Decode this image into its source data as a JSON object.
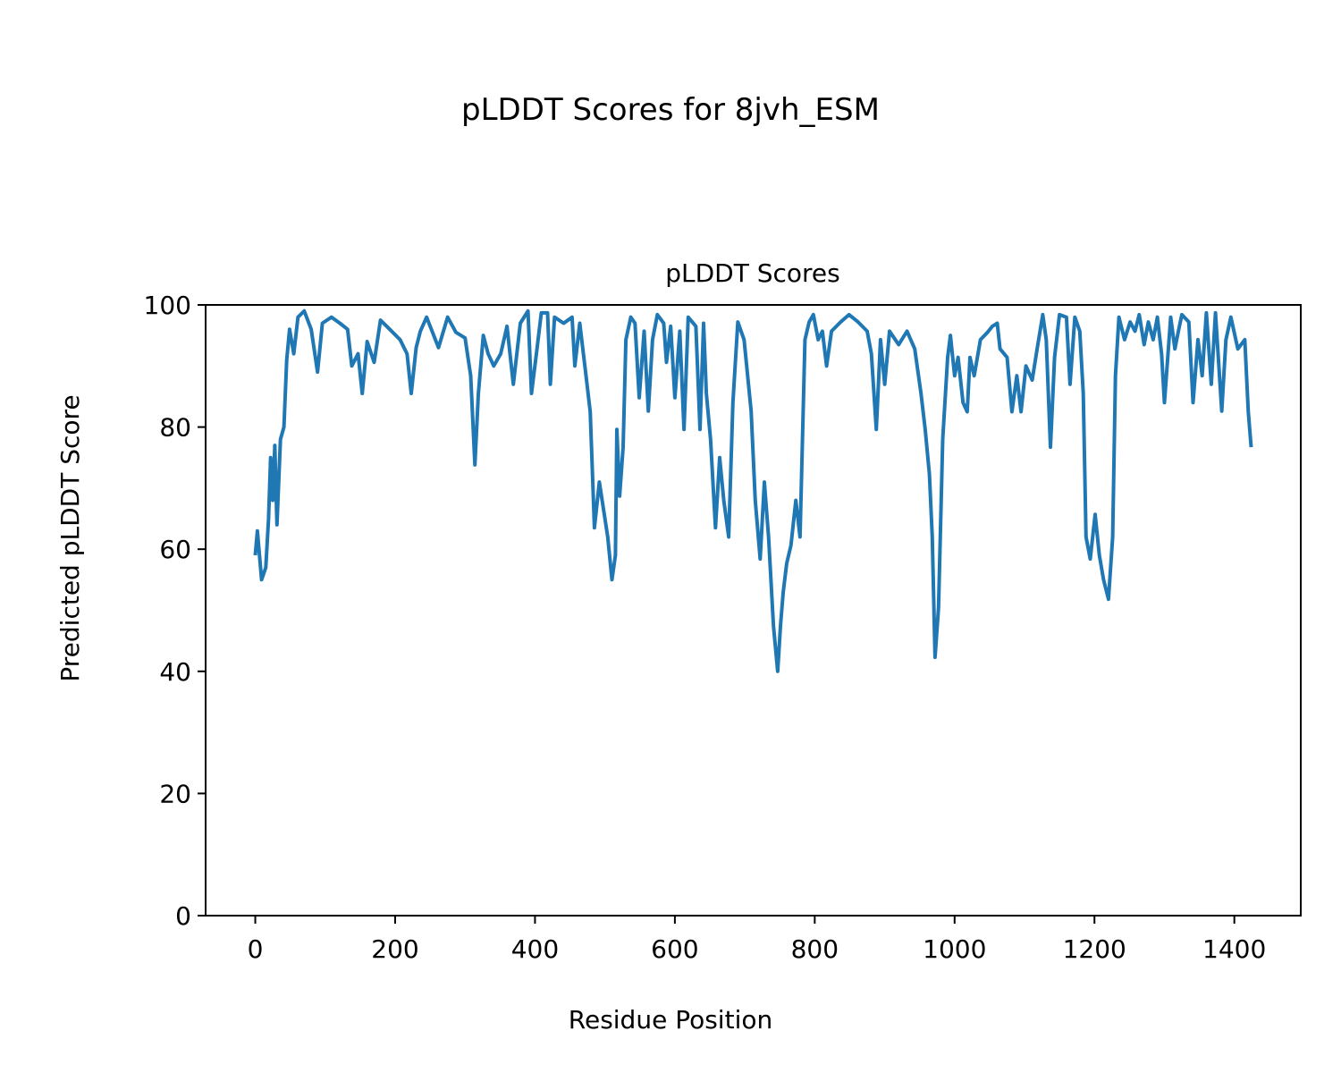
{
  "chart_data": {
    "type": "line",
    "suptitle": "pLDDT Scores for 8jvh_ESM",
    "title": "pLDDT Scores",
    "xlabel": "Residue Position",
    "ylabel": "Predicted pLDDT Score",
    "xlim": [
      -71,
      1495
    ],
    "ylim": [
      0,
      100
    ],
    "xticks": [
      0,
      200,
      400,
      600,
      800,
      1000,
      1200,
      1400
    ],
    "yticks": [
      0,
      20,
      40,
      60,
      80,
      100
    ],
    "grid": false,
    "color": "#1f77b4",
    "series": [
      {
        "name": "pLDDT",
        "x": [
          0,
          3,
          9,
          15,
          19,
          22,
          25,
          28,
          31,
          36,
          41,
          45,
          49,
          55,
          61,
          70,
          80,
          89,
          96,
          109,
          121,
          132,
          138,
          147,
          153,
          160,
          170,
          179,
          195,
          207,
          217,
          223,
          230,
          236,
          245,
          262,
          275,
          287,
          300,
          308,
          314,
          319,
          326,
          333,
          341,
          351,
          360,
          369,
          379,
          390,
          395,
          402,
          409,
          418,
          422,
          428,
          441,
          453,
          457,
          464,
          473,
          479,
          485,
          492,
          498,
          504,
          510,
          515,
          517,
          521,
          526,
          530,
          537,
          543,
          549,
          556,
          562,
          568,
          575,
          584,
          588,
          594,
          600,
          607,
          613,
          619,
          630,
          636,
          641,
          645,
          651,
          658,
          664,
          670,
          677,
          683,
          690,
          699,
          709,
          715,
          722,
          728,
          734,
          741,
          747,
          751,
          755,
          760,
          766,
          773,
          779,
          786,
          792,
          798,
          805,
          811,
          817,
          824,
          837,
          849,
          862,
          875,
          881,
          888,
          894,
          900,
          907,
          920,
          932,
          943,
          952,
          958,
          964,
          968,
          972,
          977,
          983,
          990,
          994,
          1000,
          1005,
          1012,
          1018,
          1022,
          1028,
          1037,
          1047,
          1054,
          1061,
          1065,
          1075,
          1082,
          1089,
          1095,
          1102,
          1111,
          1118,
          1126,
          1131,
          1137,
          1143,
          1150,
          1160,
          1165,
          1172,
          1179,
          1184,
          1188,
          1194,
          1201,
          1207,
          1213,
          1220,
          1226,
          1230,
          1235,
          1243,
          1251,
          1258,
          1264,
          1271,
          1277,
          1284,
          1290,
          1296,
          1300,
          1309,
          1315,
          1320,
          1325,
          1335,
          1341,
          1348,
          1354,
          1360,
          1367,
          1373,
          1382,
          1388,
          1395,
          1405,
          1415,
          1420,
          1424
        ],
        "y": [
          59,
          63,
          55,
          57,
          65,
          75,
          68,
          77,
          64,
          78,
          80,
          91,
          96,
          92,
          98,
          99,
          96,
          89,
          97,
          98,
          97,
          96,
          90,
          92,
          85.5,
          94,
          90.6,
          97.5,
          95.7,
          94.3,
          92,
          85.5,
          93,
          95.7,
          98,
          93,
          98,
          95.5,
          94.6,
          88.4,
          73.8,
          85.5,
          95,
          92,
          90,
          92,
          96.5,
          87,
          97,
          99,
          85.5,
          92,
          98.7,
          98.7,
          87,
          98,
          97,
          98,
          90,
          97,
          88.4,
          82.5,
          63.5,
          71,
          66.5,
          62,
          55,
          59,
          79.6,
          68.7,
          76.7,
          94.3,
          98,
          97,
          84.8,
          95.7,
          82.6,
          94.3,
          98.4,
          97,
          90.6,
          96.5,
          84.8,
          95.7,
          79.6,
          98,
          96.5,
          79.6,
          97,
          85.5,
          78,
          63.5,
          75,
          68,
          62,
          84,
          97.2,
          94.3,
          82.6,
          68,
          58.4,
          71,
          62,
          47.4,
          40,
          47.4,
          53,
          57.7,
          60.6,
          68,
          62,
          94.3,
          97.2,
          98.4,
          94.3,
          95.7,
          90,
          95.7,
          97.2,
          98.4,
          97.2,
          95.7,
          92,
          79.6,
          94.3,
          87,
          95.7,
          93.5,
          95.7,
          92.8,
          85.5,
          79.6,
          72.3,
          62,
          42.3,
          50.4,
          78,
          91.4,
          95,
          88.4,
          91.4,
          84,
          82.5,
          91.4,
          88.4,
          94.3,
          95.5,
          96.5,
          97,
          92.8,
          91.4,
          82.5,
          88.4,
          82.5,
          90,
          87.7,
          92.8,
          98.4,
          94.3,
          76.7,
          91.4,
          98.4,
          98,
          87,
          98,
          95.7,
          85.5,
          62,
          58.4,
          65.7,
          59,
          55,
          51.8,
          62,
          88.4,
          98,
          94.3,
          97.2,
          95.7,
          98.4,
          93.5,
          97.2,
          94.3,
          98,
          92,
          84,
          98,
          92.8,
          95.7,
          98.4,
          97.2,
          84,
          94.3,
          88.4,
          98.7,
          87,
          98.7,
          82.6,
          94.3,
          98,
          92.8,
          94.3,
          82.5,
          76.7
        ]
      }
    ]
  }
}
